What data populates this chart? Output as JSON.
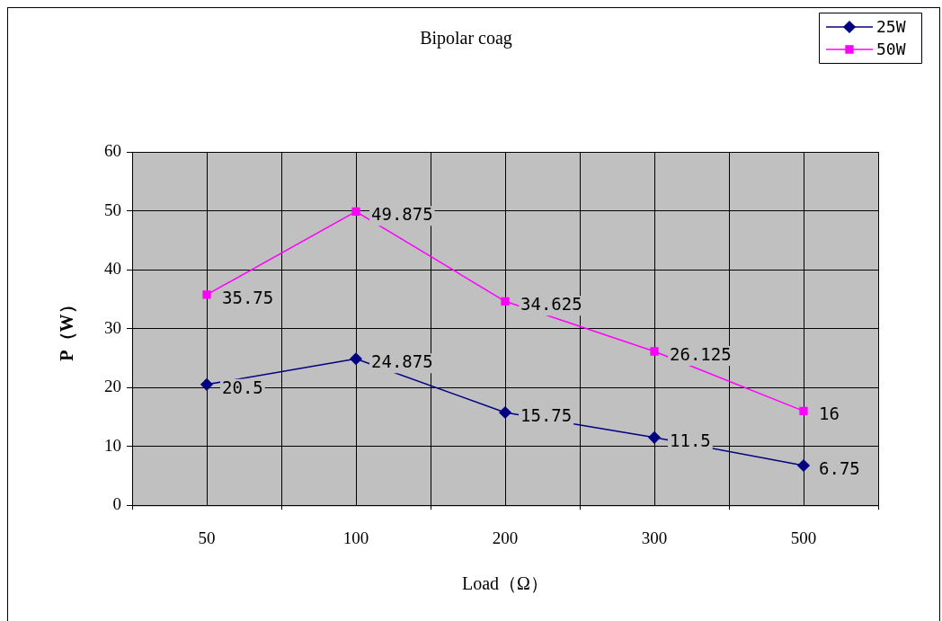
{
  "chart_data": {
    "type": "line",
    "title": "Bipolar coag",
    "xlabel": "Load（Ω）",
    "ylabel": "P（W）",
    "categories": [
      "50",
      "100",
      "200",
      "300",
      "500"
    ],
    "series": [
      {
        "name": "25W",
        "color": "#000080",
        "marker": "diamond",
        "values": [
          20.5,
          24.875,
          15.75,
          11.5,
          6.75
        ]
      },
      {
        "name": "50W",
        "color": "#ff00ff",
        "marker": "square",
        "values": [
          35.75,
          49.875,
          34.625,
          26.125,
          16
        ]
      }
    ],
    "ylim": [
      0,
      60
    ],
    "yticks": [
      0,
      10,
      20,
      30,
      40,
      50,
      60
    ],
    "grid": true,
    "legend": "top right",
    "data_labels": true,
    "line_style": "solid"
  }
}
